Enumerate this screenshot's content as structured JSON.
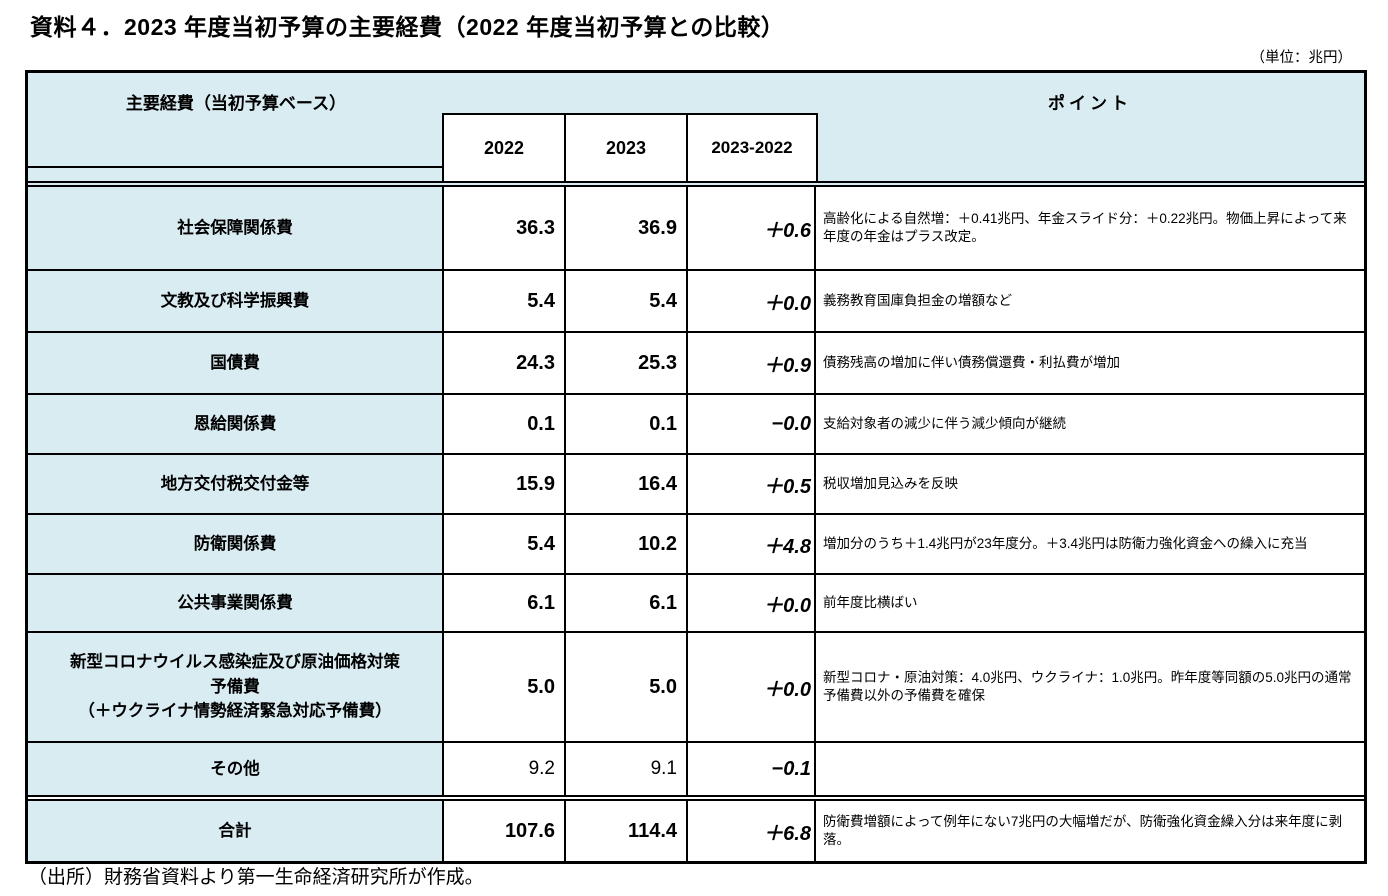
{
  "page": {
    "title": "資料４．2023 年度当初予算の主要経費（2022 年度当初予算との比較）",
    "unit_note": "（単位：兆円）",
    "source_note": "（出所）財務省資料より第一生命経済研究所が作成。"
  },
  "colors": {
    "header_bg": "#d9ecf2",
    "border": "#000000"
  },
  "table": {
    "header": {
      "category_label": "主要経費（当初予算ベース）",
      "col_2022": "2022",
      "col_2023": "2023",
      "col_diff": "2023-2022",
      "points_label": "ポイント"
    },
    "rows": [
      {
        "label": "社会保障関係費",
        "y2022": "36.3",
        "y2023": "36.9",
        "diff": "＋0.6",
        "point": "高齢化による自然増：＋0.41兆円、年金スライド分：＋0.22兆円。物価上昇によって来年度の年金はプラス改定。"
      },
      {
        "label": "文教及び科学振興費",
        "y2022": "5.4",
        "y2023": "5.4",
        "diff": "＋0.0",
        "point": "義務教育国庫負担金の増額など"
      },
      {
        "label": "国債費",
        "y2022": "24.3",
        "y2023": "25.3",
        "diff": "＋0.9",
        "point": "債務残高の増加に伴い債務償還費・利払費が増加"
      },
      {
        "label": "恩給関係費",
        "y2022": "0.1",
        "y2023": "0.1",
        "diff": "−0.0",
        "point": "支給対象者の減少に伴う減少傾向が継続"
      },
      {
        "label": "地方交付税交付金等",
        "y2022": "15.9",
        "y2023": "16.4",
        "diff": "＋0.5",
        "point": "税収増加見込みを反映"
      },
      {
        "label": "防衛関係費",
        "y2022": "5.4",
        "y2023": "10.2",
        "diff": "＋4.8",
        "point": "増加分のうち＋1.4兆円が23年度分。＋3.4兆円は防衛力強化資金への繰入に充当"
      },
      {
        "label": "公共事業関係費",
        "y2022": "6.1",
        "y2023": "6.1",
        "diff": "＋0.0",
        "point": "前年度比横ばい"
      },
      {
        "label": "新型コロナウイルス感染症及び原油価格対策\n予備費\n（＋ウクライナ情勢経済緊急対応予備費）",
        "y2022": "5.0",
        "y2023": "5.0",
        "diff": "＋0.0",
        "point": "新型コロナ・原油対策：4.0兆円、ウクライナ：1.0兆円。昨年度等同額の5.0兆円の通常予備費以外の予備費を確保"
      },
      {
        "label": "その他",
        "y2022": "9.2",
        "y2023": "9.1",
        "diff": "−0.1",
        "point": ""
      },
      {
        "label": "合計",
        "y2022": "107.6",
        "y2023": "114.4",
        "diff": "＋6.8",
        "point": "防衛費増額によって例年にない7兆円の大幅増だが、防衛強化資金繰入分は来年度に剥落。"
      }
    ]
  }
}
